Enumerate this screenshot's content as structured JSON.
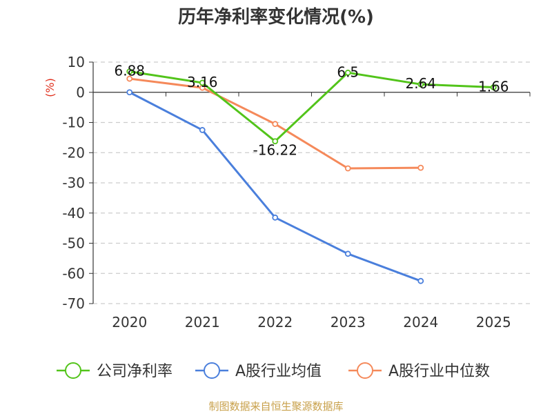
{
  "chart_data": {
    "type": "line",
    "title": "历年净利率变化情况(%)",
    "ylabel": "(%)",
    "xlabel": "",
    "categories": [
      "2020",
      "2021",
      "2022",
      "2023",
      "2024",
      "2025"
    ],
    "ylim": [
      -70,
      10
    ],
    "yticks": [
      10,
      0,
      -10,
      -20,
      -30,
      -40,
      -50,
      -60,
      -70
    ],
    "grid": true,
    "legend_position": "bottom",
    "series": [
      {
        "name": "公司净利率",
        "color": "#52c41a",
        "values": [
          6.88,
          3.16,
          -16.22,
          6.5,
          2.64,
          1.66
        ],
        "labels": [
          "6.88",
          "3.16",
          "-16.22",
          "6.5",
          "2.64",
          "1.66"
        ]
      },
      {
        "name": "A股行业均值",
        "color": "#4a7fdc",
        "values": [
          0,
          -12.5,
          -41.5,
          -53.5,
          -62.5,
          null
        ]
      },
      {
        "name": "A股行业中位数",
        "color": "#f5895a",
        "values": [
          4.5,
          1.5,
          -10.5,
          -25.2,
          -25.0,
          null
        ]
      }
    ],
    "source": "制图数据来自恒生聚源数据库"
  }
}
